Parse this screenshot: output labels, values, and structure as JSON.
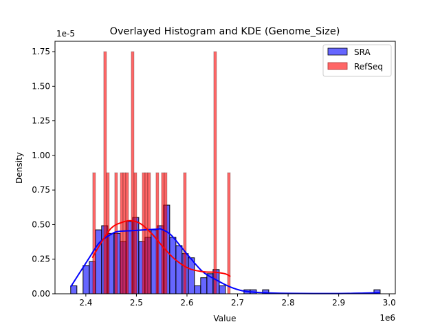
{
  "chart_data": {
    "type": "bar",
    "title": "Overlayed Histogram and KDE (Genome_Size)",
    "xlabel": "Value",
    "ylabel": "Density",
    "x_multiplier": "1e6",
    "y_multiplier": "1e-5",
    "xlim": [
      2.339,
      3.012
    ],
    "ylim": [
      0,
      1.825
    ],
    "x_ticks": [
      "2.4",
      "2.5",
      "2.6",
      "2.7",
      "2.8",
      "2.9",
      "3.0"
    ],
    "x_tick_values": [
      2.4,
      2.5,
      2.6,
      2.7,
      2.8,
      2.9,
      3.0
    ],
    "y_ticks": [
      "0.00",
      "0.25",
      "0.50",
      "0.75",
      "1.00",
      "1.25",
      "1.50",
      "1.75"
    ],
    "y_tick_values": [
      0,
      0.25,
      0.5,
      0.75,
      1.0,
      1.25,
      1.5,
      1.75
    ],
    "grid": false,
    "legend_position": "top-right",
    "series": [
      {
        "name": "SRA",
        "color": "#0000ff",
        "bar_fill": "#6666ff",
        "bin_start": 2.37,
        "bin_width": 0.01224,
        "values": [
          0.058,
          0,
          0.204,
          0.233,
          0.462,
          0.492,
          0.436,
          0.436,
          0.378,
          0.523,
          0.552,
          0.378,
          0.408,
          0.462,
          0.492,
          0.641,
          0.408,
          0.348,
          0.29,
          0.26,
          0.058,
          0.116,
          0.145,
          0.175,
          0.058,
          0,
          0,
          0,
          0.029,
          0.029,
          0,
          0.029,
          0,
          0,
          0,
          0,
          0,
          0,
          0,
          0,
          0,
          0,
          0,
          0,
          0,
          0,
          0,
          0,
          0,
          0.029
        ],
        "kde": [
          [
            2.37,
            0.05
          ],
          [
            2.405,
            0.25
          ],
          [
            2.427,
            0.37
          ],
          [
            2.45,
            0.43
          ],
          [
            2.464,
            0.45
          ],
          [
            2.495,
            0.457
          ],
          [
            2.54,
            0.467
          ],
          [
            2.549,
            0.467
          ],
          [
            2.567,
            0.43
          ],
          [
            2.586,
            0.35
          ],
          [
            2.604,
            0.27
          ],
          [
            2.631,
            0.16
          ],
          [
            2.658,
            0.1
          ],
          [
            2.685,
            0.05
          ],
          [
            2.712,
            0.02
          ],
          [
            2.75,
            0.008
          ],
          [
            2.8,
            0.003
          ],
          [
            2.9,
            0.002
          ],
          [
            2.95,
            0.005
          ],
          [
            2.982,
            0.008
          ]
        ]
      },
      {
        "name": "RefSeq",
        "color": "#ff0000",
        "bar_fill": "#ff6666",
        "bin_start": 2.4136,
        "bin_width": 0.00544,
        "values": [
          0.875,
          0,
          0,
          0,
          1.75,
          0.875,
          0,
          0,
          0.875,
          0,
          0.875,
          0.875,
          0.875,
          0,
          1.75,
          0.875,
          0,
          0,
          0.875,
          0.875,
          0.875,
          0,
          0,
          0.875,
          0,
          0.875,
          0.875,
          0,
          0,
          0,
          0,
          0,
          0,
          0.875,
          0,
          0,
          0,
          0,
          0,
          0,
          0,
          0,
          0,
          0,
          1.75,
          0,
          0,
          0,
          0,
          0.875
        ],
        "kde": [
          [
            2.413,
            0.26
          ],
          [
            2.427,
            0.35
          ],
          [
            2.45,
            0.474
          ],
          [
            2.472,
            0.517
          ],
          [
            2.49,
            0.528
          ],
          [
            2.508,
            0.507
          ],
          [
            2.531,
            0.432
          ],
          [
            2.554,
            0.333
          ],
          [
            2.576,
            0.25
          ],
          [
            2.603,
            0.184
          ],
          [
            2.631,
            0.16
          ],
          [
            2.658,
            0.155
          ],
          [
            2.676,
            0.144
          ],
          [
            2.686,
            0.125
          ]
        ]
      }
    ]
  }
}
